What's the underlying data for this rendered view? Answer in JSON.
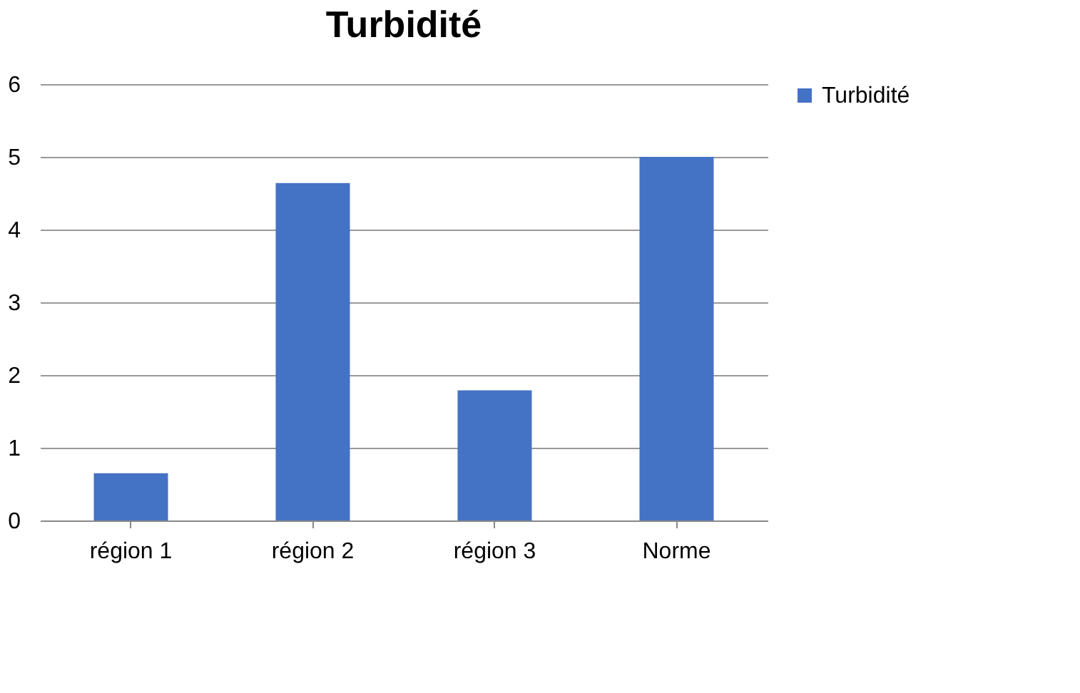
{
  "chart_data": {
    "type": "bar",
    "title": "Turbidité",
    "categories": [
      "région 1",
      "région 2",
      "région  3",
      "Norme"
    ],
    "series": [
      {
        "name": "Turbidité",
        "color": "#4472c4",
        "values": [
          0.65,
          4.64,
          1.79,
          5
        ]
      }
    ],
    "ylim": [
      0,
      6
    ],
    "yticks": [
      0,
      1,
      2,
      3,
      4,
      5,
      6
    ],
    "grid": "y",
    "legend": "right"
  }
}
